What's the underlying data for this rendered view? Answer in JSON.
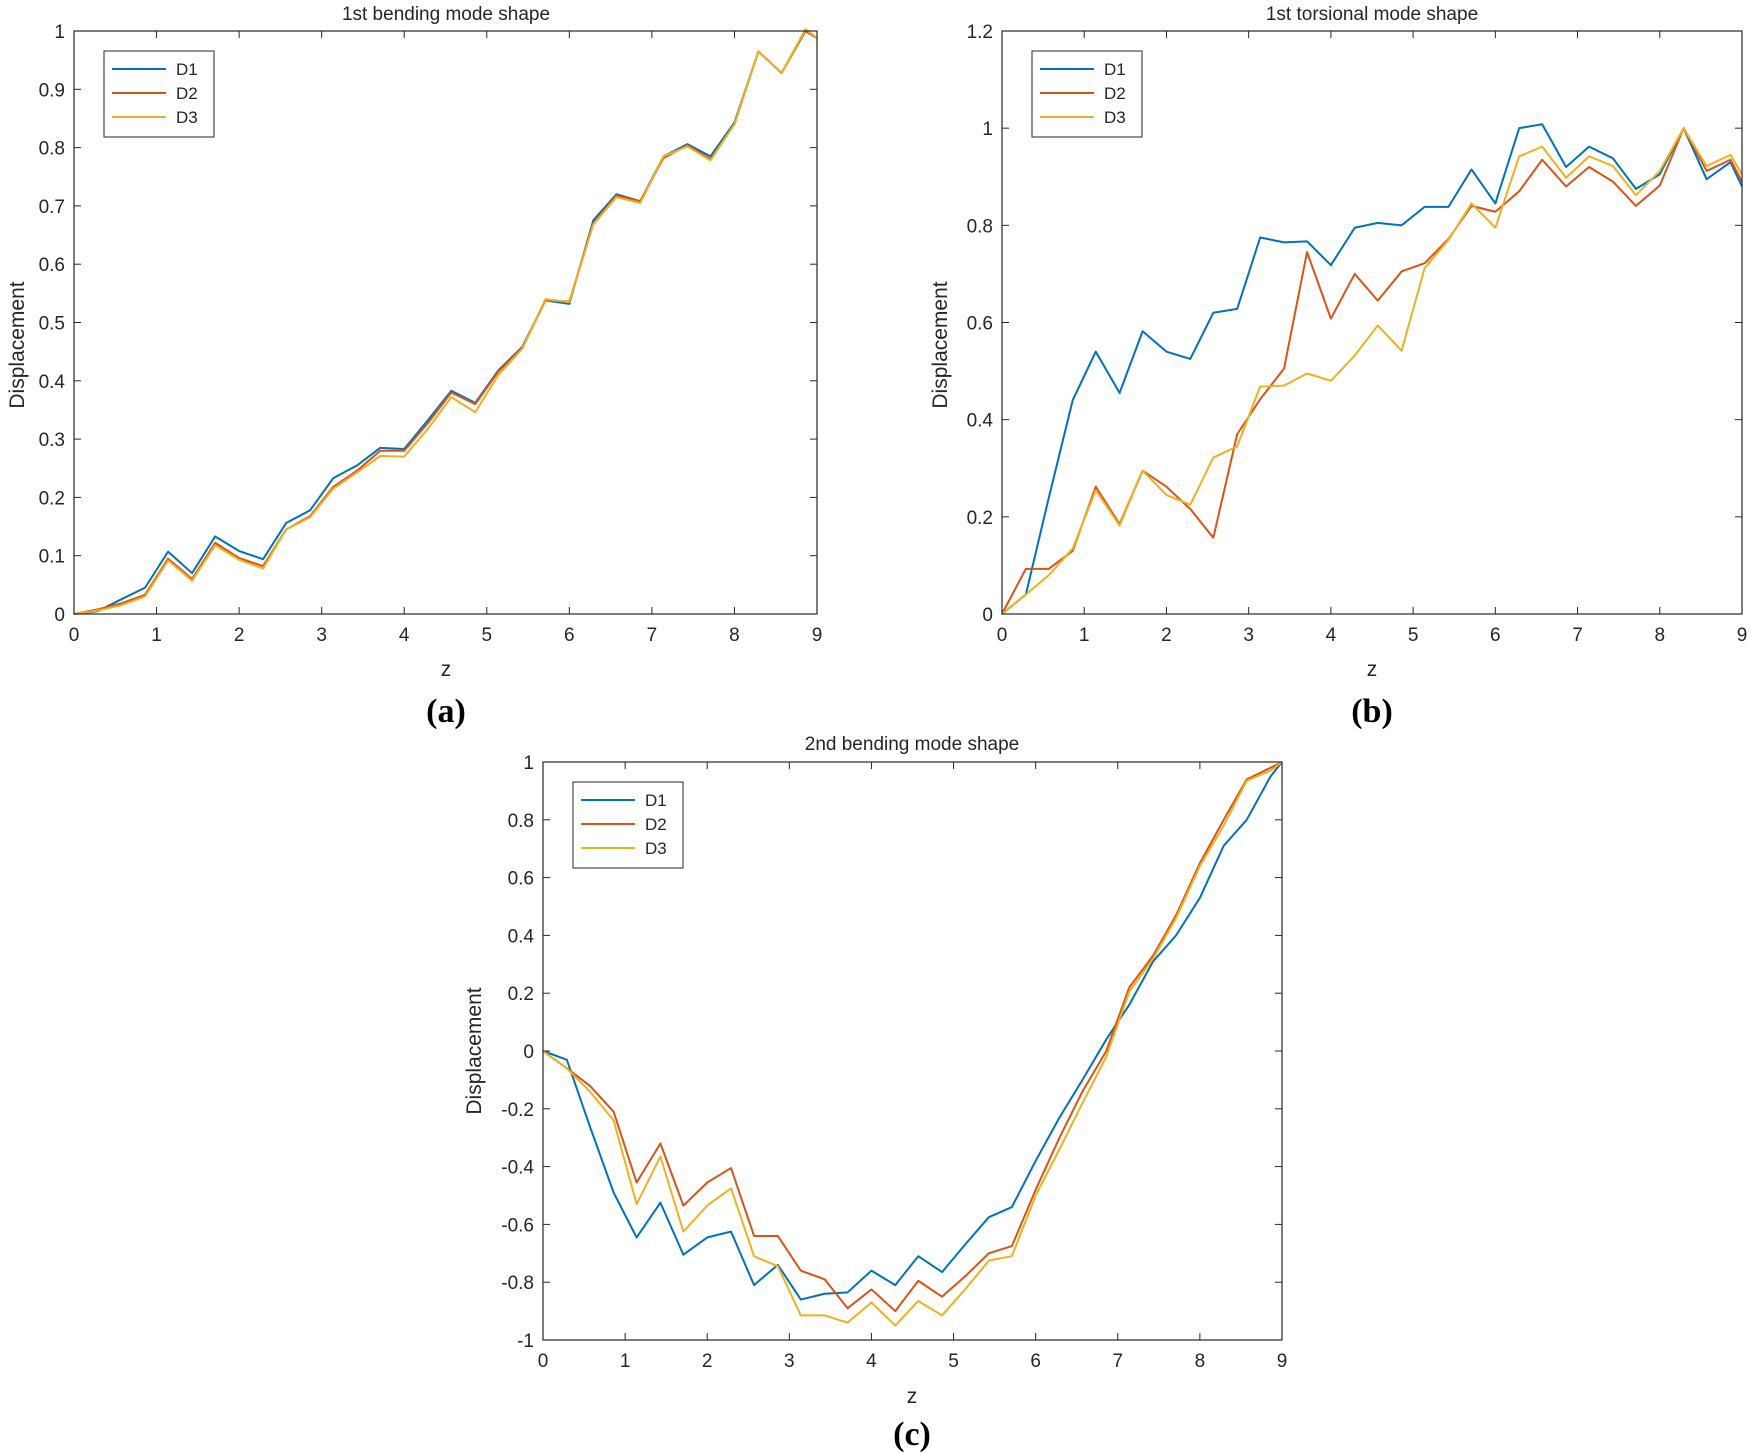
{
  "figure_labels": [
    "(a)",
    "(b)",
    "(c)"
  ],
  "colors": {
    "D1": "#0072BD",
    "D2": "#D95319",
    "D3": "#EDB120",
    "axis": "#262626"
  },
  "chart_data": [
    {
      "type": "line",
      "title": "1st bending mode shape",
      "xlabel": "z",
      "ylabel": "Displacement",
      "xlim": [
        0,
        9
      ],
      "ylim": [
        0,
        1
      ],
      "xticks": [
        0,
        1,
        2,
        3,
        4,
        5,
        6,
        7,
        8,
        9
      ],
      "yticks": [
        0,
        0.1,
        0.2,
        0.3,
        0.4,
        0.5,
        0.6,
        0.7,
        0.8,
        0.9,
        1
      ],
      "ytick_labels": [
        "0",
        "0.1",
        "0.2",
        "0.3",
        "0.4",
        "0.5",
        "0.6",
        "0.7",
        "0.8",
        "0.9",
        "1"
      ],
      "grid": false,
      "legend_position": "top-left",
      "x": [
        0,
        0.29,
        0.57,
        0.86,
        1.14,
        1.43,
        1.71,
        2.0,
        2.29,
        2.57,
        2.86,
        3.14,
        3.43,
        3.71,
        4.0,
        4.29,
        4.57,
        4.86,
        5.14,
        5.43,
        5.71,
        6.0,
        6.29,
        6.57,
        6.86,
        7.14,
        7.43,
        7.71,
        8.0,
        8.29,
        8.57,
        8.86,
        9.0
      ],
      "series": [
        {
          "name": "D1",
          "values": [
            0,
            0.005,
            0.025,
            0.045,
            0.107,
            0.07,
            0.133,
            0.108,
            0.094,
            0.156,
            0.178,
            0.233,
            0.255,
            0.285,
            0.283,
            0.333,
            0.383,
            0.362,
            0.418,
            0.458,
            0.538,
            0.532,
            0.675,
            0.72,
            0.708,
            0.785,
            0.806,
            0.785,
            0.843,
            0.965,
            0.928,
            1.0,
            0.988
          ]
        },
        {
          "name": "D2",
          "values": [
            0,
            0.008,
            0.018,
            0.033,
            0.095,
            0.06,
            0.122,
            0.096,
            0.082,
            0.145,
            0.168,
            0.218,
            0.246,
            0.28,
            0.28,
            0.328,
            0.38,
            0.36,
            0.416,
            0.456,
            0.538,
            0.536,
            0.67,
            0.718,
            0.708,
            0.782,
            0.804,
            0.78,
            0.84,
            0.965,
            0.928,
            1.0,
            0.988
          ]
        },
        {
          "name": "D3",
          "values": [
            0,
            0.006,
            0.015,
            0.03,
            0.092,
            0.057,
            0.118,
            0.093,
            0.078,
            0.145,
            0.166,
            0.215,
            0.243,
            0.271,
            0.27,
            0.318,
            0.372,
            0.346,
            0.41,
            0.455,
            0.54,
            0.535,
            0.668,
            0.715,
            0.705,
            0.785,
            0.802,
            0.778,
            0.84,
            0.965,
            0.928,
            1.003,
            0.988
          ]
        }
      ]
    },
    {
      "type": "line",
      "title": "1st torsional mode shape",
      "xlabel": "z",
      "ylabel": "Displacement",
      "xlim": [
        0,
        9
      ],
      "ylim": [
        0,
        1.2
      ],
      "xticks": [
        0,
        1,
        2,
        3,
        4,
        5,
        6,
        7,
        8,
        9
      ],
      "yticks": [
        0,
        0.2,
        0.4,
        0.6,
        0.8,
        1,
        1.2
      ],
      "ytick_labels": [
        "0",
        "0.2",
        "0.4",
        "0.6",
        "0.8",
        "1",
        "1.2"
      ],
      "grid": false,
      "legend_position": "top-left",
      "x": [
        0,
        0.29,
        0.57,
        0.86,
        1.14,
        1.43,
        1.71,
        2.0,
        2.29,
        2.57,
        2.86,
        3.14,
        3.43,
        3.71,
        4.0,
        4.29,
        4.57,
        4.86,
        5.14,
        5.43,
        5.71,
        6.0,
        6.29,
        6.57,
        6.86,
        7.14,
        7.43,
        7.71,
        8.0,
        8.29,
        8.57,
        8.86,
        9.0
      ],
      "series": [
        {
          "name": "D1",
          "values": [
            0,
            0.04,
            0.24,
            0.44,
            0.54,
            0.455,
            0.582,
            0.54,
            0.525,
            0.62,
            0.628,
            0.775,
            0.765,
            0.767,
            0.718,
            0.795,
            0.805,
            0.8,
            0.838,
            0.838,
            0.915,
            0.845,
            1.0,
            1.008,
            0.92,
            0.962,
            0.938,
            0.875,
            0.905,
            1.0,
            0.895,
            0.93,
            0.88
          ]
        },
        {
          "name": "D2",
          "values": [
            0,
            0.093,
            0.093,
            0.13,
            0.262,
            0.185,
            0.295,
            0.262,
            0.216,
            0.157,
            0.37,
            0.442,
            0.505,
            0.745,
            0.608,
            0.7,
            0.645,
            0.705,
            0.722,
            0.772,
            0.84,
            0.828,
            0.87,
            0.935,
            0.88,
            0.92,
            0.89,
            0.84,
            0.882,
            1.0,
            0.912,
            0.935,
            0.89
          ]
        },
        {
          "name": "D3",
          "values": [
            0,
            0.04,
            0.08,
            0.135,
            0.255,
            0.182,
            0.295,
            0.245,
            0.225,
            0.322,
            0.345,
            0.468,
            0.47,
            0.495,
            0.48,
            0.532,
            0.594,
            0.542,
            0.712,
            0.77,
            0.845,
            0.795,
            0.942,
            0.962,
            0.898,
            0.942,
            0.922,
            0.862,
            0.912,
            1.0,
            0.922,
            0.945,
            0.905
          ]
        }
      ]
    },
    {
      "type": "line",
      "title": "2nd bending mode shape",
      "xlabel": "z",
      "ylabel": "Displacement",
      "xlim": [
        0,
        9
      ],
      "ylim": [
        -1,
        1
      ],
      "xticks": [
        0,
        1,
        2,
        3,
        4,
        5,
        6,
        7,
        8,
        9
      ],
      "yticks": [
        -1,
        -0.8,
        -0.6,
        -0.4,
        -0.2,
        0,
        0.2,
        0.4,
        0.6,
        0.8,
        1
      ],
      "ytick_labels": [
        "-1",
        "-0.8",
        "-0.6",
        "-0.4",
        "-0.2",
        "0",
        "0.2",
        "0.4",
        "0.6",
        "0.8",
        "1"
      ],
      "grid": false,
      "legend_position": "top-left",
      "x": [
        0,
        0.29,
        0.57,
        0.86,
        1.14,
        1.43,
        1.71,
        2.0,
        2.29,
        2.57,
        2.86,
        3.14,
        3.43,
        3.71,
        4.0,
        4.29,
        4.57,
        4.86,
        5.14,
        5.43,
        5.71,
        6.0,
        6.29,
        6.57,
        6.86,
        7.14,
        7.43,
        7.71,
        8.0,
        8.29,
        8.57,
        8.86,
        9.0
      ],
      "series": [
        {
          "name": "D1",
          "values": [
            0,
            -0.03,
            -0.26,
            -0.49,
            -0.645,
            -0.525,
            -0.705,
            -0.645,
            -0.625,
            -0.81,
            -0.74,
            -0.86,
            -0.84,
            -0.835,
            -0.76,
            -0.81,
            -0.71,
            -0.765,
            -0.67,
            -0.575,
            -0.54,
            -0.38,
            -0.23,
            -0.1,
            0.04,
            0.16,
            0.31,
            0.4,
            0.53,
            0.71,
            0.8,
            0.95,
            1.0
          ]
        },
        {
          "name": "D2",
          "values": [
            0,
            -0.06,
            -0.12,
            -0.21,
            -0.455,
            -0.32,
            -0.535,
            -0.455,
            -0.405,
            -0.64,
            -0.64,
            -0.76,
            -0.79,
            -0.89,
            -0.825,
            -0.9,
            -0.795,
            -0.85,
            -0.78,
            -0.7,
            -0.675,
            -0.48,
            -0.3,
            -0.14,
            0.0,
            0.22,
            0.33,
            0.47,
            0.65,
            0.8,
            0.94,
            0.98,
            1.0
          ]
        },
        {
          "name": "D3",
          "values": [
            0,
            -0.06,
            -0.14,
            -0.24,
            -0.53,
            -0.365,
            -0.625,
            -0.535,
            -0.475,
            -0.71,
            -0.745,
            -0.915,
            -0.915,
            -0.94,
            -0.87,
            -0.95,
            -0.865,
            -0.915,
            -0.825,
            -0.725,
            -0.71,
            -0.5,
            -0.34,
            -0.18,
            -0.02,
            0.205,
            0.32,
            0.46,
            0.64,
            0.78,
            0.935,
            0.97,
            1.0
          ]
        }
      ]
    }
  ]
}
